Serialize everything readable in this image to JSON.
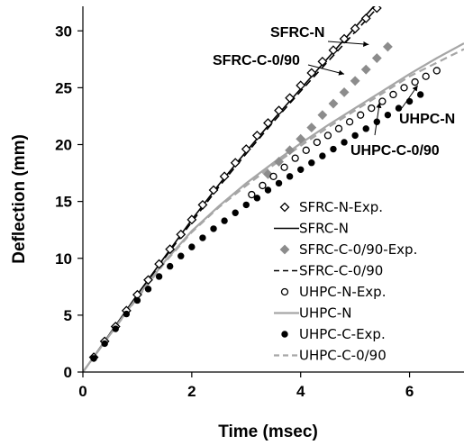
{
  "chart_data": {
    "type": "line",
    "xlabel": "Time (msec)",
    "ylabel": "Deflection (mm)",
    "xlim": [
      0,
      7
    ],
    "ylim": [
      0,
      32
    ],
    "xticks": [
      0,
      2,
      4,
      6
    ],
    "yticks": [
      0,
      5,
      10,
      15,
      20,
      25,
      30
    ],
    "grid": false,
    "legend_position": "right-middle",
    "series": [
      {
        "name": "SFRC-N-Exp.",
        "kind": "scatter",
        "marker": "open-diamond",
        "color": "#000000",
        "x": [
          0.2,
          0.4,
          0.6,
          0.8,
          1.0,
          1.2,
          1.4,
          1.6,
          1.8,
          2.0,
          2.2,
          2.4,
          2.6,
          2.8,
          3.0,
          3.2,
          3.4,
          3.6,
          3.8,
          4.0,
          4.2,
          4.4,
          4.6,
          4.8,
          5.0,
          5.2,
          5.4
        ],
        "y": [
          1.3,
          2.7,
          4.0,
          5.4,
          6.8,
          8.1,
          9.5,
          10.8,
          12.1,
          13.4,
          14.7,
          16.0,
          17.2,
          18.4,
          19.6,
          20.8,
          21.9,
          23.0,
          24.1,
          25.2,
          26.3,
          27.3,
          28.3,
          29.3,
          30.2,
          31.1,
          32.0
        ]
      },
      {
        "name": "SFRC-N",
        "kind": "line",
        "dash": "solid",
        "color": "#000000",
        "x": [
          0,
          0.5,
          1.0,
          1.5,
          2.0,
          2.5,
          3.0,
          3.5,
          4.0,
          4.5,
          5.0,
          5.5,
          5.9
        ],
        "y": [
          0,
          3.4,
          6.8,
          10.1,
          13.4,
          16.5,
          19.4,
          22.2,
          24.9,
          27.6,
          30.3,
          33.0,
          35.1
        ]
      },
      {
        "name": "SFRC-C-0/90-Exp.",
        "kind": "scatter",
        "marker": "filled-diamond",
        "color": "#8c8c8c",
        "x": [
          3.4,
          3.6,
          3.8,
          4.0,
          4.2,
          4.4,
          4.6,
          4.8,
          5.0,
          5.2,
          5.4,
          5.6
        ],
        "y": [
          17.4,
          18.5,
          19.5,
          20.5,
          21.5,
          22.6,
          23.6,
          24.6,
          25.6,
          26.6,
          27.6,
          28.6
        ]
      },
      {
        "name": "SFRC-C-0/90",
        "kind": "line",
        "dash": "dashed",
        "color": "#000000",
        "x": [
          0,
          0.5,
          1.0,
          1.5,
          2.0,
          2.5,
          3.0,
          3.5,
          4.0,
          4.5,
          5.0,
          5.5,
          6.0
        ],
        "y": [
          0,
          3.4,
          6.7,
          10.0,
          13.2,
          16.3,
          19.2,
          22.0,
          24.7,
          27.3,
          29.9,
          32.5,
          35.0
        ]
      },
      {
        "name": "UHPC-N-Exp.",
        "kind": "scatter",
        "marker": "open-circle",
        "color": "#000000",
        "x": [
          3.1,
          3.3,
          3.5,
          3.7,
          3.9,
          4.1,
          4.3,
          4.5,
          4.7,
          4.9,
          5.1,
          5.3,
          5.5,
          5.7,
          5.9,
          6.1,
          6.3,
          6.5
        ],
        "y": [
          15.6,
          16.4,
          17.2,
          18.0,
          18.8,
          19.5,
          20.2,
          20.8,
          21.4,
          22.0,
          22.6,
          23.2,
          23.8,
          24.4,
          25.0,
          25.5,
          26.0,
          26.5
        ]
      },
      {
        "name": "UHPC-N",
        "kind": "line",
        "dash": "solid",
        "color": "#a6a6a6",
        "x": [
          0,
          0.5,
          1.0,
          1.5,
          2.0,
          2.5,
          3.0,
          3.5,
          4.0,
          4.5,
          5.0,
          5.5,
          6.0,
          6.5,
          7.0
        ],
        "y": [
          0,
          3.3,
          6.6,
          9.7,
          12.4,
          14.6,
          16.6,
          18.4,
          20.1,
          21.7,
          23.2,
          24.7,
          26.2,
          27.6,
          28.9
        ]
      },
      {
        "name": "UHPC-C-Exp.",
        "kind": "scatter",
        "marker": "filled-circle",
        "color": "#000000",
        "x": [
          0.2,
          0.4,
          0.6,
          0.8,
          1.0,
          1.2,
          1.4,
          1.6,
          1.8,
          2.0,
          2.2,
          2.4,
          2.6,
          2.8,
          3.0,
          3.2,
          3.4,
          3.6,
          3.8,
          4.0,
          4.2,
          4.4,
          4.6,
          4.8,
          5.0,
          5.2,
          5.4,
          5.6,
          5.8,
          6.0,
          6.2
        ],
        "y": [
          1.2,
          2.5,
          3.8,
          5.1,
          6.3,
          7.3,
          8.4,
          9.3,
          10.2,
          11.0,
          11.8,
          12.6,
          13.3,
          14.0,
          14.7,
          15.3,
          16.0,
          16.6,
          17.2,
          17.8,
          18.4,
          19.0,
          19.6,
          20.2,
          20.8,
          21.4,
          22.0,
          22.6,
          23.2,
          23.8,
          24.4
        ]
      },
      {
        "name": "UHPC-C-0/90",
        "kind": "line",
        "dash": "dashed",
        "color": "#a6a6a6",
        "x": [
          0,
          0.5,
          1.0,
          1.5,
          2.0,
          2.5,
          3.0,
          3.5,
          4.0,
          4.5,
          5.0,
          5.5,
          6.0,
          6.5,
          7.0
        ],
        "y": [
          0,
          3.3,
          6.5,
          9.6,
          12.3,
          14.5,
          16.4,
          18.2,
          19.9,
          21.5,
          23.0,
          24.5,
          26.0,
          27.2,
          28.4
        ]
      }
    ],
    "annotations": [
      {
        "text": "SFRC-N",
        "target": [
          5.25,
          28.8
        ]
      },
      {
        "text": "SFRC-C-0/90",
        "target": [
          4.8,
          26.2
        ]
      },
      {
        "text": "UHPC-N",
        "target": [
          6.15,
          25.2
        ]
      },
      {
        "text": "UHPC-C-0/90",
        "target": [
          5.45,
          23.7
        ]
      }
    ]
  }
}
